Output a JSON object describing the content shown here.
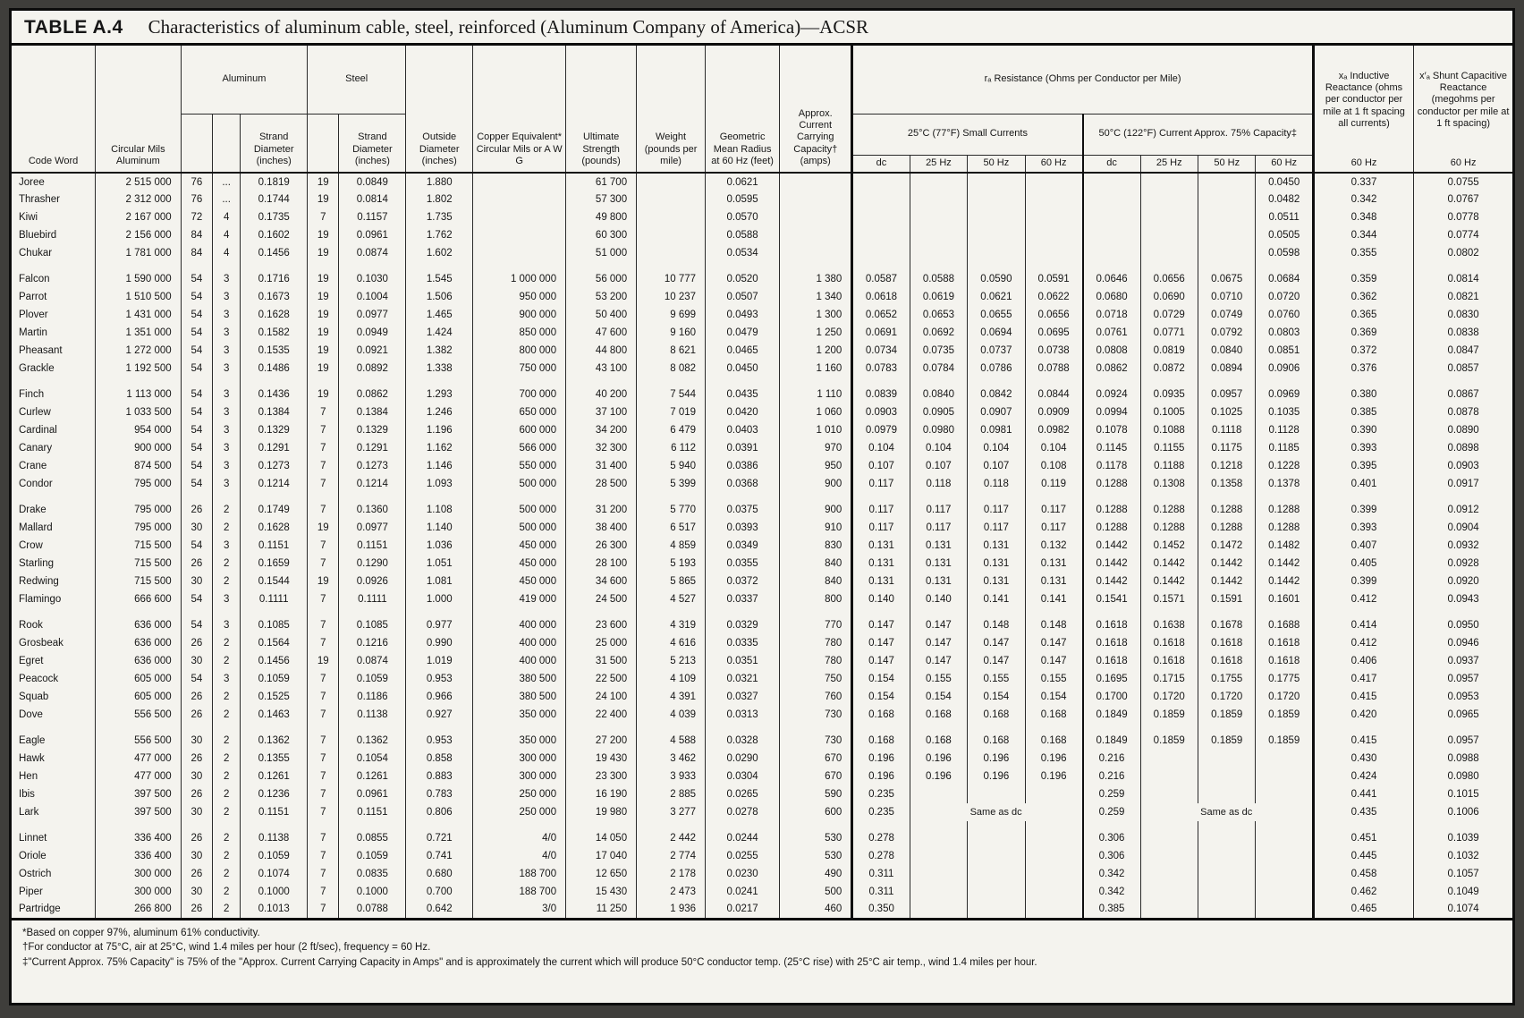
{
  "title": {
    "label": "TABLE A.4",
    "text": "Characteristics of aluminum cable, steel, reinforced (Aluminum Company of America)—ACSR"
  },
  "header": {
    "code_word": "Code Word",
    "circular_mils": "Circular Mils Aluminum",
    "aluminum": "Aluminum",
    "steel": "Steel",
    "strand_diameter": "Strand Diameter (inches)",
    "outside_diameter": "Outside Diameter (inches)",
    "copper_equivalent": "Copper Equivalent* Circular Mils or A W G",
    "ultimate_strength": "Ultimate Strength (pounds)",
    "weight": "Weight (pounds per mile)",
    "gmr": "Geometric Mean Radius at 60 Hz (feet)",
    "current_capacity": "Approx. Current Carrying Capacity† (amps)",
    "resistance": "rₐ Resistance (Ohms per Conductor per Mile)",
    "res_25c": "25°C (77°F) Small Currents",
    "res_50c": "50°C (122°F) Current Approx. 75% Capacity‡",
    "dc": "dc",
    "hz25": "25 Hz",
    "hz50": "50 Hz",
    "hz60": "60 Hz",
    "xa": "xₐ Inductive Reactance (ohms per conductor per mile at 1 ft spacing all currents)",
    "xca": "x′ₐ Shunt Capacitive Reactance (megohms per conductor per mile at 1 ft spacing)"
  },
  "groups": [
    {
      "rows": [
        [
          "Joree",
          "2 515 000",
          "76",
          "...",
          "0.1819",
          "19",
          "0.0849",
          "1.880",
          "",
          "61 700",
          "",
          "0.0621",
          "",
          "",
          "",
          "",
          "",
          "",
          "",
          "",
          "0.0450",
          "0.337",
          "0.0755"
        ],
        [
          "Thrasher",
          "2 312 000",
          "76",
          "...",
          "0.1744",
          "19",
          "0.0814",
          "1.802",
          "",
          "57 300",
          "",
          "0.0595",
          "",
          "",
          "",
          "",
          "",
          "",
          "",
          "",
          "0.0482",
          "0.342",
          "0.0767"
        ],
        [
          "Kiwi",
          "2 167 000",
          "72",
          "4",
          "0.1735",
          "7",
          "0.1157",
          "1.735",
          "",
          "49 800",
          "",
          "0.0570",
          "",
          "",
          "",
          "",
          "",
          "",
          "",
          "",
          "0.0511",
          "0.348",
          "0.0778"
        ],
        [
          "Bluebird",
          "2 156 000",
          "84",
          "4",
          "0.1602",
          "19",
          "0.0961",
          "1.762",
          "",
          "60 300",
          "",
          "0.0588",
          "",
          "",
          "",
          "",
          "",
          "",
          "",
          "",
          "0.0505",
          "0.344",
          "0.0774"
        ],
        [
          "Chukar",
          "1 781 000",
          "84",
          "4",
          "0.1456",
          "19",
          "0.0874",
          "1.602",
          "",
          "51 000",
          "",
          "0.0534",
          "",
          "",
          "",
          "",
          "",
          "",
          "",
          "",
          "0.0598",
          "0.355",
          "0.0802"
        ]
      ]
    },
    {
      "rows": [
        [
          "Falcon",
          "1 590 000",
          "54",
          "3",
          "0.1716",
          "19",
          "0.1030",
          "1.545",
          "1 000 000",
          "56 000",
          "10 777",
          "0.0520",
          "1 380",
          "0.0587",
          "0.0588",
          "0.0590",
          "0.0591",
          "0.0646",
          "0.0656",
          "0.0675",
          "0.0684",
          "0.359",
          "0.0814"
        ],
        [
          "Parrot",
          "1 510 500",
          "54",
          "3",
          "0.1673",
          "19",
          "0.1004",
          "1.506",
          "950 000",
          "53 200",
          "10 237",
          "0.0507",
          "1 340",
          "0.0618",
          "0.0619",
          "0.0621",
          "0.0622",
          "0.0680",
          "0.0690",
          "0.0710",
          "0.0720",
          "0.362",
          "0.0821"
        ],
        [
          "Plover",
          "1 431 000",
          "54",
          "3",
          "0.1628",
          "19",
          "0.0977",
          "1.465",
          "900 000",
          "50 400",
          "9 699",
          "0.0493",
          "1 300",
          "0.0652",
          "0.0653",
          "0.0655",
          "0.0656",
          "0.0718",
          "0.0729",
          "0.0749",
          "0.0760",
          "0.365",
          "0.0830"
        ],
        [
          "Martin",
          "1 351 000",
          "54",
          "3",
          "0.1582",
          "19",
          "0.0949",
          "1.424",
          "850 000",
          "47 600",
          "9 160",
          "0.0479",
          "1 250",
          "0.0691",
          "0.0692",
          "0.0694",
          "0.0695",
          "0.0761",
          "0.0771",
          "0.0792",
          "0.0803",
          "0.369",
          "0.0838"
        ],
        [
          "Pheasant",
          "1 272 000",
          "54",
          "3",
          "0.1535",
          "19",
          "0.0921",
          "1.382",
          "800 000",
          "44 800",
          "8 621",
          "0.0465",
          "1 200",
          "0.0734",
          "0.0735",
          "0.0737",
          "0.0738",
          "0.0808",
          "0.0819",
          "0.0840",
          "0.0851",
          "0.372",
          "0.0847"
        ],
        [
          "Grackle",
          "1 192 500",
          "54",
          "3",
          "0.1486",
          "19",
          "0.0892",
          "1.338",
          "750 000",
          "43 100",
          "8 082",
          "0.0450",
          "1 160",
          "0.0783",
          "0.0784",
          "0.0786",
          "0.0788",
          "0.0862",
          "0.0872",
          "0.0894",
          "0.0906",
          "0.376",
          "0.0857"
        ]
      ]
    },
    {
      "rows": [
        [
          "Finch",
          "1 113 000",
          "54",
          "3",
          "0.1436",
          "19",
          "0.0862",
          "1.293",
          "700 000",
          "40 200",
          "7 544",
          "0.0435",
          "1 110",
          "0.0839",
          "0.0840",
          "0.0842",
          "0.0844",
          "0.0924",
          "0.0935",
          "0.0957",
          "0.0969",
          "0.380",
          "0.0867"
        ],
        [
          "Curlew",
          "1 033 500",
          "54",
          "3",
          "0.1384",
          "7",
          "0.1384",
          "1.246",
          "650 000",
          "37 100",
          "7 019",
          "0.0420",
          "1 060",
          "0.0903",
          "0.0905",
          "0.0907",
          "0.0909",
          "0.0994",
          "0.1005",
          "0.1025",
          "0.1035",
          "0.385",
          "0.0878"
        ],
        [
          "Cardinal",
          "954 000",
          "54",
          "3",
          "0.1329",
          "7",
          "0.1329",
          "1.196",
          "600 000",
          "34 200",
          "6 479",
          "0.0403",
          "1 010",
          "0.0979",
          "0.0980",
          "0.0981",
          "0.0982",
          "0.1078",
          "0.1088",
          "0.1118",
          "0.1128",
          "0.390",
          "0.0890"
        ],
        [
          "Canary",
          "900 000",
          "54",
          "3",
          "0.1291",
          "7",
          "0.1291",
          "1.162",
          "566 000",
          "32 300",
          "6 112",
          "0.0391",
          "970",
          "0.104",
          "0.104",
          "0.104",
          "0.104",
          "0.1145",
          "0.1155",
          "0.1175",
          "0.1185",
          "0.393",
          "0.0898"
        ],
        [
          "Crane",
          "874 500",
          "54",
          "3",
          "0.1273",
          "7",
          "0.1273",
          "1.146",
          "550 000",
          "31 400",
          "5 940",
          "0.0386",
          "950",
          "0.107",
          "0.107",
          "0.107",
          "0.108",
          "0.1178",
          "0.1188",
          "0.1218",
          "0.1228",
          "0.395",
          "0.0903"
        ],
        [
          "Condor",
          "795 000",
          "54",
          "3",
          "0.1214",
          "7",
          "0.1214",
          "1.093",
          "500 000",
          "28 500",
          "5 399",
          "0.0368",
          "900",
          "0.117",
          "0.118",
          "0.118",
          "0.119",
          "0.1288",
          "0.1308",
          "0.1358",
          "0.1378",
          "0.401",
          "0.0917"
        ]
      ]
    },
    {
      "rows": [
        [
          "Drake",
          "795 000",
          "26",
          "2",
          "0.1749",
          "7",
          "0.1360",
          "1.108",
          "500 000",
          "31 200",
          "5 770",
          "0.0375",
          "900",
          "0.117",
          "0.117",
          "0.117",
          "0.117",
          "0.1288",
          "0.1288",
          "0.1288",
          "0.1288",
          "0.399",
          "0.0912"
        ],
        [
          "Mallard",
          "795 000",
          "30",
          "2",
          "0.1628",
          "19",
          "0.0977",
          "1.140",
          "500 000",
          "38 400",
          "6 517",
          "0.0393",
          "910",
          "0.117",
          "0.117",
          "0.117",
          "0.117",
          "0.1288",
          "0.1288",
          "0.1288",
          "0.1288",
          "0.393",
          "0.0904"
        ],
        [
          "Crow",
          "715 500",
          "54",
          "3",
          "0.1151",
          "7",
          "0.1151",
          "1.036",
          "450 000",
          "26 300",
          "4 859",
          "0.0349",
          "830",
          "0.131",
          "0.131",
          "0.131",
          "0.132",
          "0.1442",
          "0.1452",
          "0.1472",
          "0.1482",
          "0.407",
          "0.0932"
        ],
        [
          "Starling",
          "715 500",
          "26",
          "2",
          "0.1659",
          "7",
          "0.1290",
          "1.051",
          "450 000",
          "28 100",
          "5 193",
          "0.0355",
          "840",
          "0.131",
          "0.131",
          "0.131",
          "0.131",
          "0.1442",
          "0.1442",
          "0.1442",
          "0.1442",
          "0.405",
          "0.0928"
        ],
        [
          "Redwing",
          "715 500",
          "30",
          "2",
          "0.1544",
          "19",
          "0.0926",
          "1.081",
          "450 000",
          "34 600",
          "5 865",
          "0.0372",
          "840",
          "0.131",
          "0.131",
          "0.131",
          "0.131",
          "0.1442",
          "0.1442",
          "0.1442",
          "0.1442",
          "0.399",
          "0.0920"
        ],
        [
          "Flamingo",
          "666 600",
          "54",
          "3",
          "0.1111",
          "7",
          "0.1111",
          "1.000",
          "419 000",
          "24 500",
          "4 527",
          "0.0337",
          "800",
          "0.140",
          "0.140",
          "0.141",
          "0.141",
          "0.1541",
          "0.1571",
          "0.1591",
          "0.1601",
          "0.412",
          "0.0943"
        ]
      ]
    },
    {
      "rows": [
        [
          "Rook",
          "636 000",
          "54",
          "3",
          "0.1085",
          "7",
          "0.1085",
          "0.977",
          "400 000",
          "23 600",
          "4 319",
          "0.0329",
          "770",
          "0.147",
          "0.147",
          "0.148",
          "0.148",
          "0.1618",
          "0.1638",
          "0.1678",
          "0.1688",
          "0.414",
          "0.0950"
        ],
        [
          "Grosbeak",
          "636 000",
          "26",
          "2",
          "0.1564",
          "7",
          "0.1216",
          "0.990",
          "400 000",
          "25 000",
          "4 616",
          "0.0335",
          "780",
          "0.147",
          "0.147",
          "0.147",
          "0.147",
          "0.1618",
          "0.1618",
          "0.1618",
          "0.1618",
          "0.412",
          "0.0946"
        ],
        [
          "Egret",
          "636 000",
          "30",
          "2",
          "0.1456",
          "19",
          "0.0874",
          "1.019",
          "400 000",
          "31 500",
          "5 213",
          "0.0351",
          "780",
          "0.147",
          "0.147",
          "0.147",
          "0.147",
          "0.1618",
          "0.1618",
          "0.1618",
          "0.1618",
          "0.406",
          "0.0937"
        ],
        [
          "Peacock",
          "605 000",
          "54",
          "3",
          "0.1059",
          "7",
          "0.1059",
          "0.953",
          "380 500",
          "22 500",
          "4 109",
          "0.0321",
          "750",
          "0.154",
          "0.155",
          "0.155",
          "0.155",
          "0.1695",
          "0.1715",
          "0.1755",
          "0.1775",
          "0.417",
          "0.0957"
        ],
        [
          "Squab",
          "605 000",
          "26",
          "2",
          "0.1525",
          "7",
          "0.1186",
          "0.966",
          "380 500",
          "24 100",
          "4 391",
          "0.0327",
          "760",
          "0.154",
          "0.154",
          "0.154",
          "0.154",
          "0.1700",
          "0.1720",
          "0.1720",
          "0.1720",
          "0.415",
          "0.0953"
        ],
        [
          "Dove",
          "556 500",
          "26",
          "2",
          "0.1463",
          "7",
          "0.1138",
          "0.927",
          "350 000",
          "22 400",
          "4 039",
          "0.0313",
          "730",
          "0.168",
          "0.168",
          "0.168",
          "0.168",
          "0.1849",
          "0.1859",
          "0.1859",
          "0.1859",
          "0.420",
          "0.0965"
        ]
      ]
    },
    {
      "rows": [
        [
          "Eagle",
          "556 500",
          "30",
          "2",
          "0.1362",
          "7",
          "0.1362",
          "0.953",
          "350 000",
          "27 200",
          "4 588",
          "0.0328",
          "730",
          "0.168",
          "0.168",
          "0.168",
          "0.168",
          "0.1849",
          "0.1859",
          "0.1859",
          "0.1859",
          "0.415",
          "0.0957"
        ],
        [
          "Hawk",
          "477 000",
          "26",
          "2",
          "0.1355",
          "7",
          "0.1054",
          "0.858",
          "300 000",
          "19 430",
          "3 462",
          "0.0290",
          "670",
          "0.196",
          "0.196",
          "0.196",
          "0.196",
          "0.216",
          "",
          "",
          "",
          "0.430",
          "0.0988"
        ],
        [
          "Hen",
          "477 000",
          "30",
          "2",
          "0.1261",
          "7",
          "0.1261",
          "0.883",
          "300 000",
          "23 300",
          "3 933",
          "0.0304",
          "670",
          "0.196",
          "0.196",
          "0.196",
          "0.196",
          "0.216",
          "",
          "",
          "",
          "0.424",
          "0.0980"
        ],
        [
          "Ibis",
          "397 500",
          "26",
          "2",
          "0.1236",
          "7",
          "0.0961",
          "0.783",
          "250 000",
          "16 190",
          "2 885",
          "0.0265",
          "590",
          "0.235",
          "",
          "",
          "",
          "0.259",
          "",
          "",
          "",
          "0.441",
          "0.1015"
        ],
        [
          "Lark",
          "397 500",
          "30",
          "2",
          "0.1151",
          "7",
          "0.1151",
          "0.806",
          "250 000",
          "19 980",
          "3 277",
          "0.0278",
          "600",
          "0.235",
          {
            "t": "Same as dc",
            "cs": 3
          },
          "0.259",
          {
            "t": "Same as dc",
            "cs": 3
          },
          "0.435",
          "0.1006"
        ]
      ]
    },
    {
      "rows": [
        [
          "Linnet",
          "336 400",
          "26",
          "2",
          "0.1138",
          "7",
          "0.0855",
          "0.721",
          "4/0",
          "14 050",
          "2 442",
          "0.0244",
          "530",
          "0.278",
          "",
          "",
          "",
          "0.306",
          "",
          "",
          "",
          "0.451",
          "0.1039"
        ],
        [
          "Oriole",
          "336 400",
          "30",
          "2",
          "0.1059",
          "7",
          "0.1059",
          "0.741",
          "4/0",
          "17 040",
          "2 774",
          "0.0255",
          "530",
          "0.278",
          "",
          "",
          "",
          "0.306",
          "",
          "",
          "",
          "0.445",
          "0.1032"
        ],
        [
          "Ostrich",
          "300 000",
          "26",
          "2",
          "0.1074",
          "7",
          "0.0835",
          "0.680",
          "188 700",
          "12 650",
          "2 178",
          "0.0230",
          "490",
          "0.311",
          "",
          "",
          "",
          "0.342",
          "",
          "",
          "",
          "0.458",
          "0.1057"
        ],
        [
          "Piper",
          "300 000",
          "30",
          "2",
          "0.1000",
          "7",
          "0.1000",
          "0.700",
          "188 700",
          "15 430",
          "2 473",
          "0.0241",
          "500",
          "0.311",
          "",
          "",
          "",
          "0.342",
          "",
          "",
          "",
          "0.462",
          "0.1049"
        ],
        [
          "Partridge",
          "266 800",
          "26",
          "2",
          "0.1013",
          "7",
          "0.0788",
          "0.642",
          "3/0",
          "11 250",
          "1 936",
          "0.0217",
          "460",
          "0.350",
          "",
          "",
          "",
          "0.385",
          "",
          "",
          "",
          "0.465",
          "0.1074"
        ]
      ]
    }
  ],
  "footnotes": [
    "*Based on copper 97%, aluminum 61% conductivity.",
    "†For conductor at 75°C, air at 25°C, wind 1.4 miles per hour (2 ft/sec), frequency = 60 Hz.",
    "‡\"Current Approx. 75% Capacity\" is 75% of the \"Approx. Current Carrying Capacity in Amps\" and is approximately the current which will produce 50°C conductor temp. (25°C rise) with 25°C air temp., wind 1.4 miles per hour."
  ]
}
